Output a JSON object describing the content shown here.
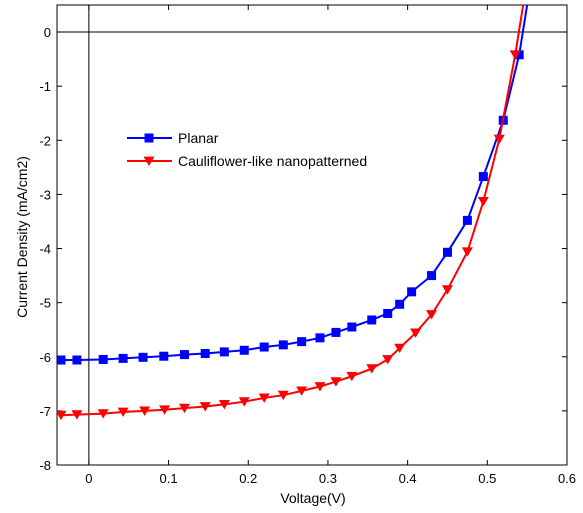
{
  "chart_data": {
    "type": "line",
    "title": "",
    "xlabel": "Voltage(V)",
    "ylabel": "Current  Density (mA/cm2)",
    "xlim": [
      -0.04,
      0.6
    ],
    "ylim": [
      -8,
      0.5
    ],
    "xticks": [
      0,
      0.1,
      0.2,
      0.3,
      0.4,
      0.5,
      0.6
    ],
    "xtick_labels": [
      "0",
      "0.1",
      "0.2",
      "0.3",
      "0.4",
      "0.5",
      "0.6"
    ],
    "yticks": [
      0,
      -1,
      -2,
      -3,
      -4,
      -5,
      -6,
      -7,
      -8
    ],
    "ytick_labels": [
      "0",
      "-1",
      "-2",
      "-3",
      "-4",
      "-5",
      "-6",
      "-7",
      "-8"
    ],
    "grid": false,
    "legend_position": "upper-left",
    "series": [
      {
        "name": "Planar",
        "color": "#0000ff",
        "marker": "square",
        "x": [
          -0.035,
          -0.015,
          0.018,
          0.043,
          0.068,
          0.094,
          0.12,
          0.146,
          0.17,
          0.195,
          0.22,
          0.244,
          0.267,
          0.29,
          0.31,
          0.33,
          0.355,
          0.375,
          0.39,
          0.405,
          0.43,
          0.45,
          0.475,
          0.495,
          0.52,
          0.54,
          0.55
        ],
        "y": [
          -6.06,
          -6.06,
          -6.05,
          -6.03,
          -6.01,
          -5.99,
          -5.96,
          -5.94,
          -5.91,
          -5.88,
          -5.82,
          -5.78,
          -5.72,
          -5.65,
          -5.55,
          -5.45,
          -5.32,
          -5.2,
          -5.03,
          -4.8,
          -4.5,
          -4.07,
          -3.48,
          -2.67,
          -1.63,
          -0.42,
          0.5
        ]
      },
      {
        "name": "Cauliflower-like nanopatterned",
        "color": "#ff0000",
        "marker": "triangle-down",
        "x": [
          -0.035,
          -0.015,
          0.018,
          0.043,
          0.07,
          0.095,
          0.12,
          0.146,
          0.17,
          0.195,
          0.22,
          0.244,
          0.267,
          0.29,
          0.31,
          0.33,
          0.355,
          0.375,
          0.39,
          0.41,
          0.43,
          0.45,
          0.475,
          0.495,
          0.515,
          0.535,
          0.545
        ],
        "y": [
          -7.08,
          -7.07,
          -7.05,
          -7.02,
          -7.0,
          -6.98,
          -6.95,
          -6.92,
          -6.88,
          -6.83,
          -6.76,
          -6.71,
          -6.63,
          -6.55,
          -6.46,
          -6.36,
          -6.22,
          -6.05,
          -5.84,
          -5.56,
          -5.22,
          -4.76,
          -4.06,
          -3.13,
          -1.98,
          -0.42,
          0.5
        ]
      }
    ]
  }
}
